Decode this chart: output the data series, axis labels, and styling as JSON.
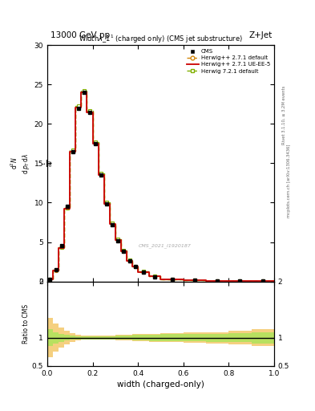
{
  "title_top": "13000 GeV pp",
  "title_right": "Z+Jet",
  "plot_title": "Width$\\lambda$_1$^1$ (charged only) (CMS jet substructure)",
  "xlabel": "width (charged-only)",
  "ylabel_ratio": "Ratio to CMS",
  "rivet_text": "Rivet 3.1.10, ≥ 3.2M events",
  "mcplots_text": "mcplots.cern.ch [arXiv:1306.3436]",
  "watermark": "CMS_2021_I1920187",
  "x_bins": [
    0.0,
    0.025,
    0.05,
    0.075,
    0.1,
    0.125,
    0.15,
    0.175,
    0.2,
    0.225,
    0.25,
    0.275,
    0.3,
    0.325,
    0.35,
    0.375,
    0.4,
    0.45,
    0.5,
    0.6,
    0.7,
    0.8,
    0.9,
    1.0
  ],
  "cms_y": [
    0.3,
    1.5,
    4.5,
    9.5,
    16.5,
    22.0,
    24.0,
    21.5,
    17.5,
    13.5,
    9.8,
    7.2,
    5.2,
    3.8,
    2.6,
    1.85,
    1.2,
    0.62,
    0.28,
    0.12,
    0.06,
    0.025,
    0.01
  ],
  "herwig271_y": [
    0.28,
    1.4,
    4.3,
    9.3,
    16.6,
    22.2,
    24.1,
    21.6,
    17.6,
    13.6,
    9.9,
    7.3,
    5.3,
    3.85,
    2.65,
    1.9,
    1.22,
    0.63,
    0.29,
    0.125,
    0.062,
    0.026,
    0.011
  ],
  "herwig271ue_y": [
    0.27,
    1.38,
    4.25,
    9.25,
    16.5,
    22.1,
    24.0,
    21.5,
    17.5,
    13.5,
    9.85,
    7.25,
    5.25,
    3.82,
    2.62,
    1.87,
    1.21,
    0.625,
    0.288,
    0.123,
    0.061,
    0.025,
    0.0105
  ],
  "herwig721_y": [
    0.29,
    1.45,
    4.35,
    9.35,
    16.7,
    22.3,
    24.2,
    21.7,
    17.7,
    13.7,
    10.0,
    7.35,
    5.35,
    3.9,
    2.7,
    1.92,
    1.24,
    0.64,
    0.295,
    0.127,
    0.064,
    0.027,
    0.012
  ],
  "ratio_herwig271_hi": [
    1.35,
    1.25,
    1.18,
    1.12,
    1.08,
    1.05,
    1.04,
    1.04,
    1.04,
    1.04,
    1.04,
    1.04,
    1.05,
    1.05,
    1.05,
    1.06,
    1.06,
    1.07,
    1.08,
    1.09,
    1.1,
    1.12,
    1.15
  ],
  "ratio_herwig271_lo": [
    0.65,
    0.75,
    0.82,
    0.88,
    0.92,
    0.95,
    0.96,
    0.96,
    0.96,
    0.96,
    0.96,
    0.96,
    0.95,
    0.95,
    0.95,
    0.94,
    0.94,
    0.93,
    0.92,
    0.91,
    0.9,
    0.88,
    0.85
  ],
  "ratio_herwig721_hi": [
    1.15,
    1.1,
    1.07,
    1.05,
    1.04,
    1.03,
    1.03,
    1.03,
    1.03,
    1.03,
    1.03,
    1.03,
    1.035,
    1.035,
    1.04,
    1.045,
    1.05,
    1.055,
    1.06,
    1.065,
    1.07,
    1.08,
    1.1
  ],
  "ratio_herwig721_lo": [
    0.85,
    0.9,
    0.93,
    0.95,
    0.96,
    0.97,
    0.97,
    0.97,
    0.97,
    0.97,
    0.97,
    0.97,
    0.965,
    0.965,
    0.96,
    0.955,
    0.95,
    0.945,
    0.94,
    0.935,
    0.93,
    0.92,
    0.9
  ],
  "color_cms": "#000000",
  "color_herwig271": "#d4860a",
  "color_herwig271ue": "#cc0000",
  "color_herwig721": "#80b000",
  "color_herwig271_fill": "#f5d080",
  "color_herwig721_fill": "#b8e060",
  "ylim_main": [
    0.0,
    30.0
  ],
  "yticks_main": [
    0,
    5,
    10,
    15,
    20,
    25,
    30
  ],
  "ylim_ratio": [
    0.5,
    2.0
  ],
  "xlim": [
    0.0,
    1.0
  ],
  "background_color": "#ffffff"
}
